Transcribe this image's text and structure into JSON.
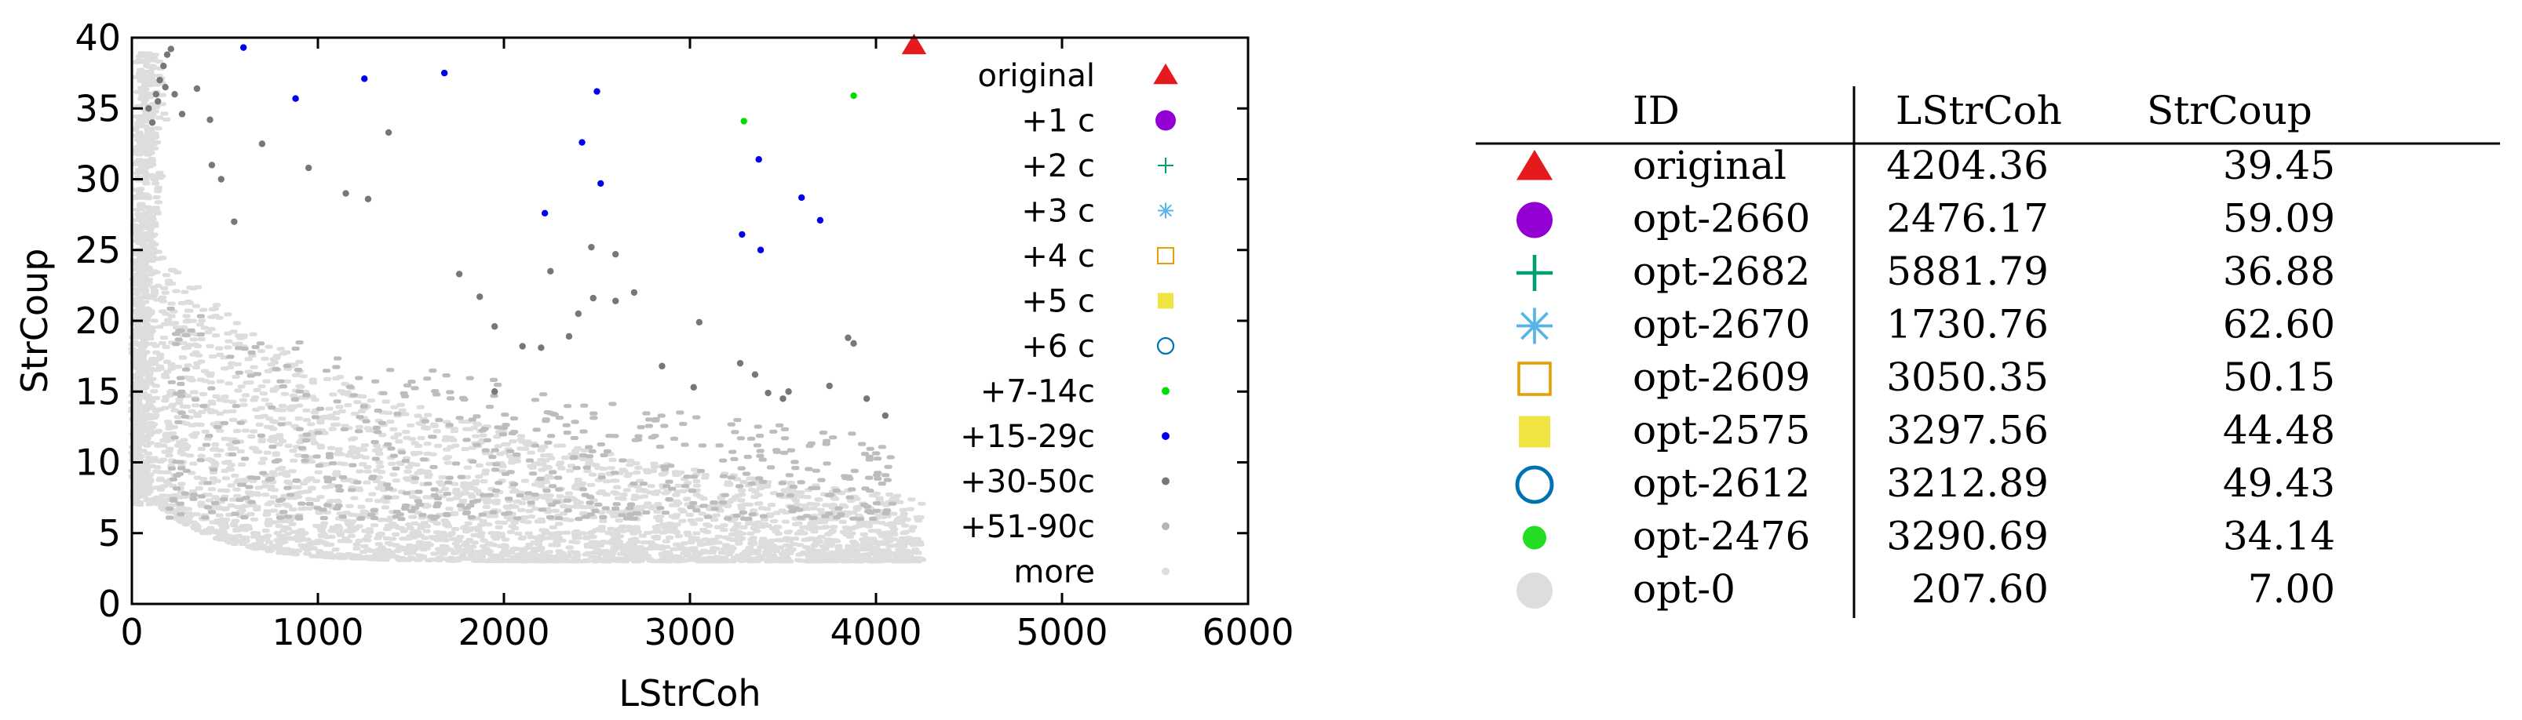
{
  "chart_data": {
    "type": "scatter",
    "xlabel": "LStrCoh",
    "ylabel": "StrCoup",
    "xlim": [
      0,
      6000
    ],
    "ylim": [
      0,
      40
    ],
    "x_ticks": [
      "0",
      "1000",
      "2000",
      "3000",
      "4000",
      "5000",
      "6000"
    ],
    "y_ticks": [
      "0",
      "5",
      "10",
      "15",
      "20",
      "25",
      "30",
      "35",
      "40"
    ],
    "grid": false,
    "legend_position": "right",
    "series": [
      {
        "name": "original",
        "marker": "triangle",
        "color": "#e41a1c",
        "points": [
          [
            4204.36,
            39.45
          ]
        ]
      },
      {
        "name": "+1 c",
        "marker": "circle",
        "color": "#9400d3",
        "points": []
      },
      {
        "name": "+2 c",
        "marker": "plus",
        "color": "#009e73",
        "points": []
      },
      {
        "name": "+3 c",
        "marker": "asterisk",
        "color": "#56b4e9",
        "points": []
      },
      {
        "name": "+4 c",
        "marker": "square-open",
        "color": "#e69f00",
        "points": []
      },
      {
        "name": "+5 c",
        "marker": "square",
        "color": "#f0e442",
        "points": []
      },
      {
        "name": "+6 c",
        "marker": "circle-open",
        "color": "#0072b2",
        "points": []
      },
      {
        "name": "+7-14c",
        "marker": "dot",
        "color": "#00dd00",
        "points": [
          [
            3290,
            34.1
          ],
          [
            3880,
            35.9
          ]
        ]
      },
      {
        "name": "+15-29c",
        "marker": "dot",
        "color": "#0000ee",
        "points": [
          [
            600,
            39.3
          ],
          [
            880,
            35.7
          ],
          [
            1250,
            37.1
          ],
          [
            1680,
            37.5
          ],
          [
            2500,
            36.2
          ],
          [
            2420,
            32.6
          ],
          [
            2520,
            29.7
          ],
          [
            2220,
            27.6
          ],
          [
            3370,
            31.4
          ],
          [
            3600,
            28.7
          ],
          [
            3700,
            27.1
          ],
          [
            3280,
            26.1
          ],
          [
            3380,
            25.0
          ]
        ]
      },
      {
        "name": "+30-50c",
        "marker": "dot",
        "color": "#777777",
        "points": [
          [
            90,
            35.0
          ],
          [
            110,
            34.0
          ],
          [
            130,
            36.0
          ],
          [
            150,
            37.0
          ],
          [
            170,
            38.0
          ],
          [
            190,
            38.8
          ],
          [
            210,
            39.2
          ],
          [
            140,
            35.5
          ],
          [
            180,
            36.5
          ],
          [
            230,
            36.0
          ],
          [
            270,
            34.6
          ],
          [
            350,
            36.4
          ],
          [
            420,
            34.2
          ],
          [
            430,
            31.0
          ],
          [
            480,
            30.0
          ],
          [
            550,
            27.0
          ],
          [
            700,
            32.5
          ],
          [
            950,
            30.8
          ],
          [
            1150,
            29.0
          ],
          [
            1270,
            28.6
          ],
          [
            1380,
            33.3
          ],
          [
            1760,
            23.3
          ],
          [
            1870,
            21.7
          ],
          [
            1950,
            19.6
          ],
          [
            2100,
            18.2
          ],
          [
            2250,
            23.5
          ],
          [
            2350,
            18.9
          ],
          [
            2470,
            25.2
          ],
          [
            2480,
            21.6
          ],
          [
            2600,
            21.4
          ],
          [
            2700,
            22.0
          ],
          [
            2850,
            16.8
          ],
          [
            2600,
            24.7
          ],
          [
            3050,
            19.9
          ],
          [
            3270,
            17.0
          ],
          [
            3350,
            16.2
          ],
          [
            3420,
            14.9
          ],
          [
            3500,
            14.5
          ],
          [
            3530,
            15.0
          ],
          [
            3850,
            18.8
          ],
          [
            3880,
            18.4
          ],
          [
            3950,
            14.5
          ],
          [
            4050,
            13.3
          ],
          [
            3750,
            15.4
          ],
          [
            3020,
            15.3
          ],
          [
            2400,
            20.5
          ],
          [
            1950,
            15.0
          ],
          [
            2200,
            18.1
          ]
        ]
      },
      {
        "name": "+51-90c",
        "marker": "dot",
        "color": "#b5b5b5",
        "points": []
      },
      {
        "name": "more",
        "marker": "dot",
        "color": "#dddddd",
        "points": []
      }
    ]
  },
  "table": {
    "headers": [
      "ID",
      "LStrCoh",
      "StrCoup"
    ],
    "rows": [
      {
        "marker": "triangle",
        "color": "#e41a1c",
        "id": "original",
        "lstrcoh": "4204.36",
        "strcoup": "39.45"
      },
      {
        "marker": "circle",
        "color": "#9400d3",
        "id": "opt-2660",
        "lstrcoh": "2476.17",
        "strcoup": "59.09"
      },
      {
        "marker": "plus",
        "color": "#009e73",
        "id": "opt-2682",
        "lstrcoh": "5881.79",
        "strcoup": "36.88"
      },
      {
        "marker": "asterisk",
        "color": "#56b4e9",
        "id": "opt-2670",
        "lstrcoh": "1730.76",
        "strcoup": "62.60"
      },
      {
        "marker": "square-open",
        "color": "#e69f00",
        "id": "opt-2609",
        "lstrcoh": "3050.35",
        "strcoup": "50.15"
      },
      {
        "marker": "square",
        "color": "#f0e442",
        "id": "opt-2575",
        "lstrcoh": "3297.56",
        "strcoup": "44.48"
      },
      {
        "marker": "circle-open",
        "color": "#0072b2",
        "id": "opt-2612",
        "lstrcoh": "3212.89",
        "strcoup": "49.43"
      },
      {
        "marker": "circle",
        "color": "#22dd22",
        "id": "opt-2476",
        "lstrcoh": "3290.69",
        "strcoup": "34.14"
      },
      {
        "marker": "circle",
        "color": "#dddddd",
        "id": "opt-0",
        "lstrcoh": "207.60",
        "strcoup": "7.00"
      }
    ]
  }
}
